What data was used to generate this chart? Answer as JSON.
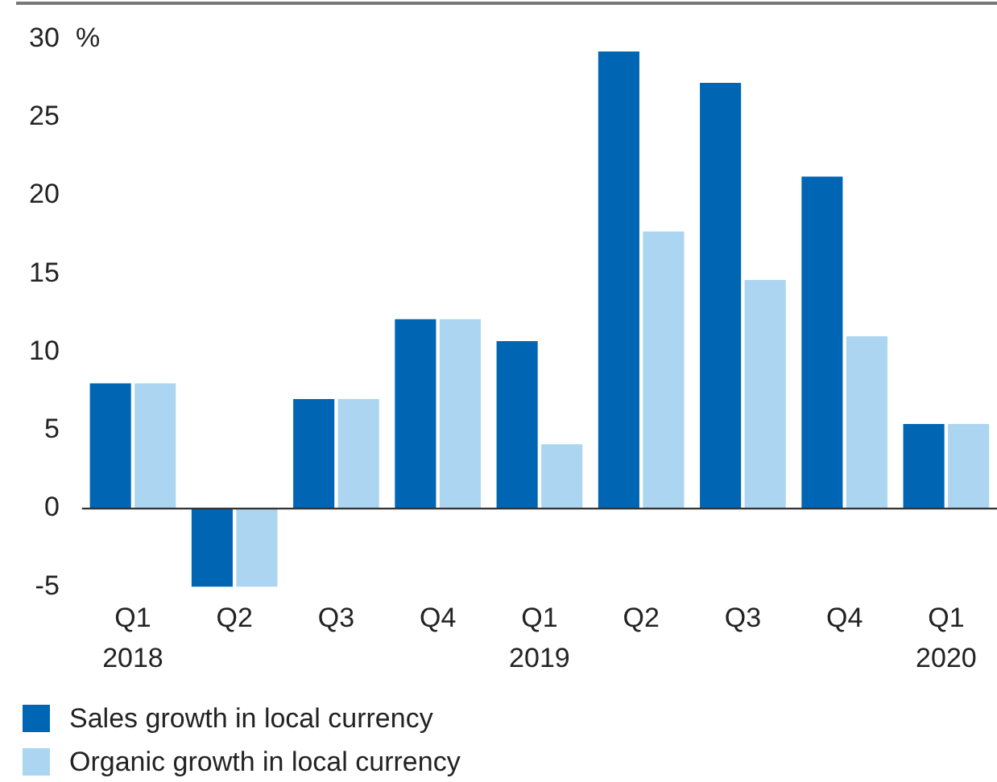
{
  "chart_data": {
    "type": "bar",
    "ylabel": "%",
    "categories": [
      "Q1\n2018",
      "Q2",
      "Q3",
      "Q4",
      "Q1\n2019",
      "Q2",
      "Q3",
      "Q4",
      "Q1\n2020"
    ],
    "series": [
      {
        "name": "Sales growth in local currency",
        "color": "#0066b3",
        "values": [
          8.0,
          -5.0,
          7.0,
          12.1,
          10.7,
          29.2,
          27.2,
          21.2,
          5.4
        ]
      },
      {
        "name": "Organic growth in local currency",
        "color": "#abd5f0",
        "values": [
          8.0,
          -5.0,
          7.0,
          12.1,
          4.1,
          17.7,
          14.6,
          11.0,
          5.4
        ]
      }
    ],
    "ylim": [
      -5,
      30
    ],
    "yticks": [
      -5,
      0,
      5,
      10,
      15,
      20,
      25,
      30
    ],
    "ref_lines": [
      {
        "axis": "y",
        "value": 0,
        "color": "#333333"
      }
    ],
    "legend": "bottom left"
  }
}
